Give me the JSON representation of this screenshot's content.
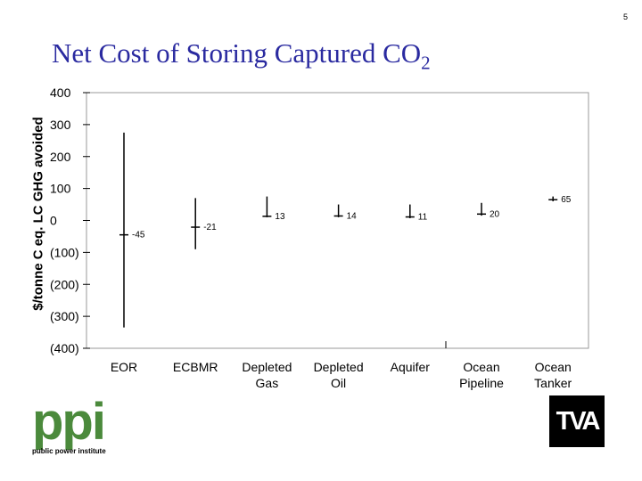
{
  "slide": {
    "page_number": "5",
    "title_main": "Net Cost of Storing Captured CO",
    "title_sub": "2"
  },
  "logos": {
    "ppi_text": "ppi",
    "ppi_tagline": "public power institute",
    "tva_text": "TVA"
  },
  "chart_data": {
    "type": "error-bar",
    "ylabel": "$/tonne C eq. LC GHG avoided",
    "ylim": [
      -400,
      400
    ],
    "yticks": [
      400,
      300,
      200,
      100,
      0,
      -100,
      -200,
      -300,
      -400
    ],
    "ytick_labels": [
      "400",
      "300",
      "200",
      "100",
      "0",
      "(100)",
      "(200)",
      "(300)",
      "(400)"
    ],
    "categories": [
      [
        "EOR"
      ],
      [
        "ECBMR"
      ],
      [
        "Depleted",
        "Gas"
      ],
      [
        "Depleted",
        "Oil"
      ],
      [
        "Aquifer"
      ],
      [
        "Ocean",
        "Pipeline"
      ],
      [
        "Ocean",
        "Tanker"
      ]
    ],
    "series": [
      {
        "values": [
          -45,
          -21,
          13,
          14,
          11,
          20,
          65
        ],
        "low": [
          -335,
          -90,
          10,
          10,
          7,
          15,
          60
        ],
        "high": [
          275,
          70,
          75,
          50,
          50,
          55,
          75
        ],
        "labels": [
          "-45",
          "-21",
          "13",
          "14",
          "11",
          "20",
          "65"
        ]
      }
    ],
    "grid": false,
    "legend": "none"
  }
}
